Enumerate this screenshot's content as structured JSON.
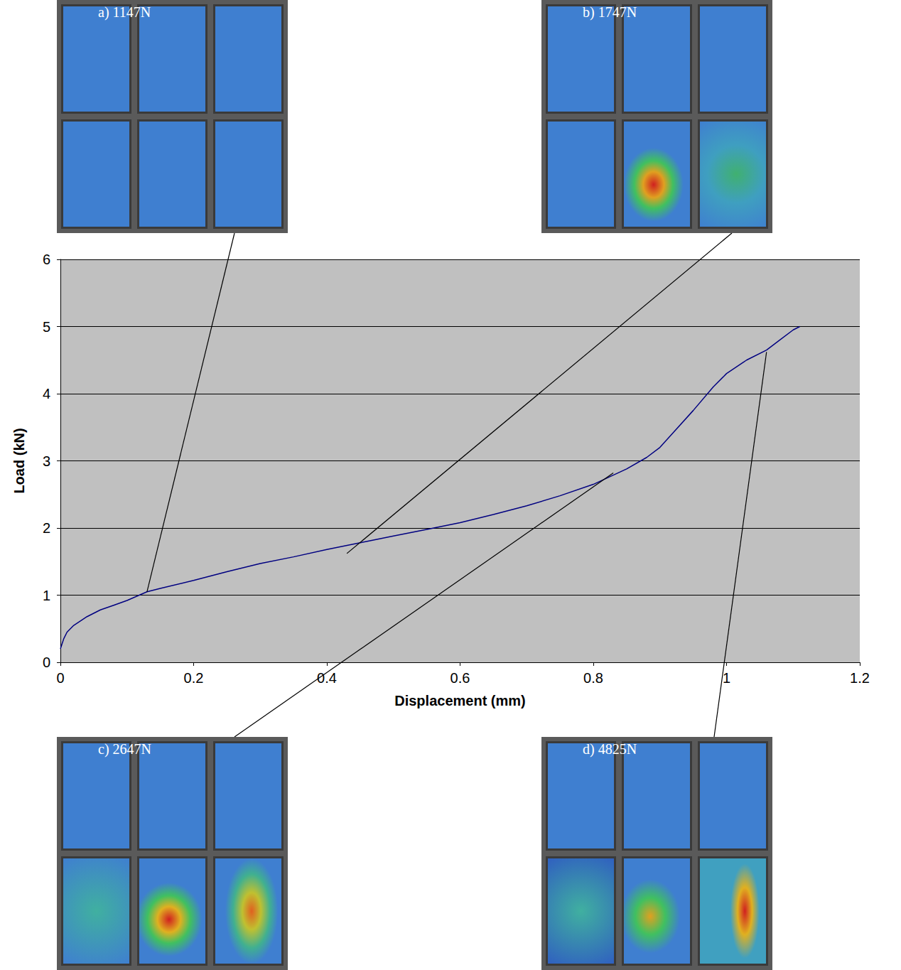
{
  "chart_data": {
    "type": "line",
    "x_label": "Displacement (mm)",
    "y_label": "Load (kN)",
    "x": [
      0,
      0.005,
      0.01,
      0.02,
      0.04,
      0.06,
      0.08,
      0.1,
      0.13,
      0.15,
      0.2,
      0.25,
      0.3,
      0.35,
      0.4,
      0.45,
      0.5,
      0.55,
      0.6,
      0.65,
      0.7,
      0.75,
      0.8,
      0.85,
      0.88,
      0.9,
      0.92,
      0.95,
      0.98,
      1.0,
      1.03,
      1.06,
      1.08,
      1.1,
      1.11
    ],
    "values": [
      0.2,
      0.35,
      0.45,
      0.55,
      0.68,
      0.78,
      0.85,
      0.92,
      1.05,
      1.1,
      1.22,
      1.35,
      1.47,
      1.57,
      1.68,
      1.78,
      1.88,
      1.98,
      2.08,
      2.2,
      2.33,
      2.48,
      2.65,
      2.88,
      3.05,
      3.2,
      3.42,
      3.75,
      4.1,
      4.3,
      4.5,
      4.65,
      4.8,
      4.95,
      5.0
    ],
    "color": "#000080",
    "xlim": [
      0,
      1.2
    ],
    "xticks": [
      0,
      0.2,
      0.4,
      0.6,
      0.8,
      1,
      1.2
    ],
    "ylim": [
      0,
      6
    ],
    "yticks": [
      0,
      1,
      2,
      3,
      4,
      5,
      6
    ],
    "grid": true,
    "annotations": [
      {
        "label": "a) 1147N",
        "x": 0.13,
        "y": 1.05
      },
      {
        "label": "b) 1747N",
        "x": 0.43,
        "y": 1.62
      },
      {
        "label": "c) 2647N",
        "x": 0.83,
        "y": 2.82
      },
      {
        "label": "d) 4825N",
        "x": 1.06,
        "y": 4.62
      }
    ]
  }
}
